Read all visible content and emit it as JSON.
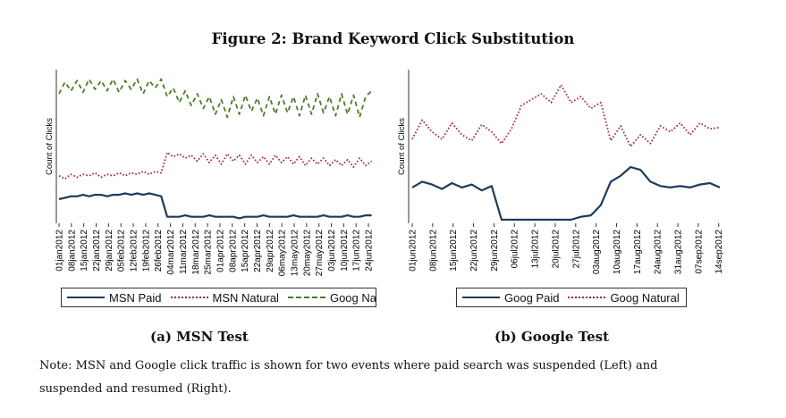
{
  "title": "Figure 2: Brand Keyword Click Substitution",
  "captions": [
    "(a) MSN Test",
    "(b) Google Test"
  ],
  "note": [
    "Note: MSN and Google click traffic is shown for two events where paid search was suspended (Left) and",
    "suspended and resumed (Right)."
  ],
  "colors": {
    "paid": "#1b3b5e",
    "natural": "#a3282f",
    "goog_natural": "#4b7b2b"
  },
  "chart_data": [
    {
      "type": "line",
      "title": "(a) MSN Test",
      "ylabel": "Count of Clicks",
      "xlabel": "",
      "x_unit": "days since 01jan2012",
      "x_step_days": 3.4,
      "xlim": [
        0,
        177
      ],
      "ylim": [
        0,
        100
      ],
      "y_note": "relative scale (no y tick labels shown)",
      "x_ticks": [
        "01jan2012",
        "08jan2012",
        "15jan2012",
        "22jan2012",
        "29jan2012",
        "05feb2012",
        "12feb2012",
        "19feb2012",
        "26feb2012",
        "04mar2012",
        "11mar2012",
        "18mar2012",
        "25mar2012",
        "01apr2012",
        "08apr2012",
        "15apr2012",
        "22apr2012",
        "29apr2012",
        "06may2012",
        "13may2012",
        "20may2012",
        "27may2012",
        "03jun2012",
        "10jun2012",
        "17jun2012",
        "24jun2012"
      ],
      "x_tick_step_days": 7,
      "legend": "bottom",
      "series": [
        {
          "name": "MSN Paid",
          "style": "solid",
          "color": "#1b3b5e",
          "values": [
            14,
            15,
            16,
            16,
            17,
            16,
            17,
            17,
            16,
            17,
            17,
            18,
            17,
            18,
            17,
            18,
            17,
            16,
            2,
            2,
            2,
            3,
            2,
            2,
            2,
            3,
            2,
            2,
            2,
            2,
            1,
            2,
            2,
            2,
            3,
            2,
            2,
            2,
            2,
            3,
            2,
            2,
            2,
            2,
            3,
            2,
            2,
            2,
            3,
            2,
            2,
            3,
            3
          ]
        },
        {
          "name": "MSN Natural",
          "style": "dotted",
          "color": "#a3282f",
          "values": [
            30,
            28,
            31,
            29,
            31,
            30,
            32,
            29,
            31,
            30,
            32,
            30,
            32,
            31,
            33,
            31,
            33,
            32,
            46,
            43,
            45,
            42,
            44,
            40,
            45,
            39,
            44,
            38,
            45,
            40,
            44,
            38,
            44,
            39,
            43,
            38,
            44,
            39,
            43,
            38,
            43,
            37,
            42,
            38,
            42,
            37,
            41,
            37,
            41,
            36,
            42,
            37,
            40
          ]
        },
        {
          "name": "Goog Natural",
          "style": "dashed",
          "color": "#4b7b2b",
          "values": [
            86,
            94,
            88,
            95,
            87,
            96,
            89,
            95,
            88,
            96,
            87,
            95,
            89,
            96,
            86,
            95,
            90,
            96,
            84,
            90,
            80,
            88,
            78,
            86,
            76,
            84,
            72,
            82,
            70,
            84,
            72,
            85,
            74,
            83,
            71,
            84,
            72,
            85,
            73,
            84,
            71,
            85,
            72,
            86,
            73,
            84,
            71,
            86,
            72,
            85,
            70,
            84,
            88
          ]
        }
      ],
      "legend_labels": [
        "MSN Paid",
        "MSN Natural",
        "Goog Natural"
      ]
    },
    {
      "type": "line",
      "title": "(b) Google Test",
      "ylabel": "Count of Clicks",
      "xlabel": "",
      "x_unit": "days since 01jun2012",
      "x_step_days": 3.4,
      "xlim": [
        0,
        106
      ],
      "ylim": [
        0,
        100
      ],
      "y_note": "relative scale (no y tick labels shown)",
      "x_ticks": [
        "01jun2012",
        "08jun2012",
        "15jun2012",
        "22jun2012",
        "29jun2012",
        "06jul2012",
        "13jul2012",
        "20jul2012",
        "27jul2012",
        "03aug2012",
        "10aug2012",
        "17aug2012",
        "24aug2012",
        "31aug2012",
        "07sep2012",
        "14sep2012"
      ],
      "x_tick_step_days": 7,
      "legend": "bottom",
      "series": [
        {
          "name": "Goog Paid",
          "style": "solid",
          "color": "#1b3b5e",
          "values": [
            22,
            26,
            24,
            21,
            25,
            22,
            24,
            20,
            23,
            0,
            0,
            0,
            0,
            0,
            0,
            0,
            0,
            2,
            3,
            10,
            26,
            30,
            36,
            34,
            26,
            23,
            22,
            23,
            22,
            24,
            25,
            22
          ]
        },
        {
          "name": "Goog Natural",
          "style": "dotted",
          "color": "#a3282f",
          "values": [
            55,
            68,
            60,
            55,
            66,
            58,
            54,
            65,
            60,
            52,
            62,
            78,
            82,
            86,
            80,
            92,
            80,
            84,
            76,
            80,
            54,
            64,
            50,
            58,
            52,
            64,
            60,
            66,
            58,
            66,
            62,
            63
          ]
        }
      ],
      "legend_labels": [
        "Goog Paid",
        "Goog Natural"
      ]
    }
  ]
}
